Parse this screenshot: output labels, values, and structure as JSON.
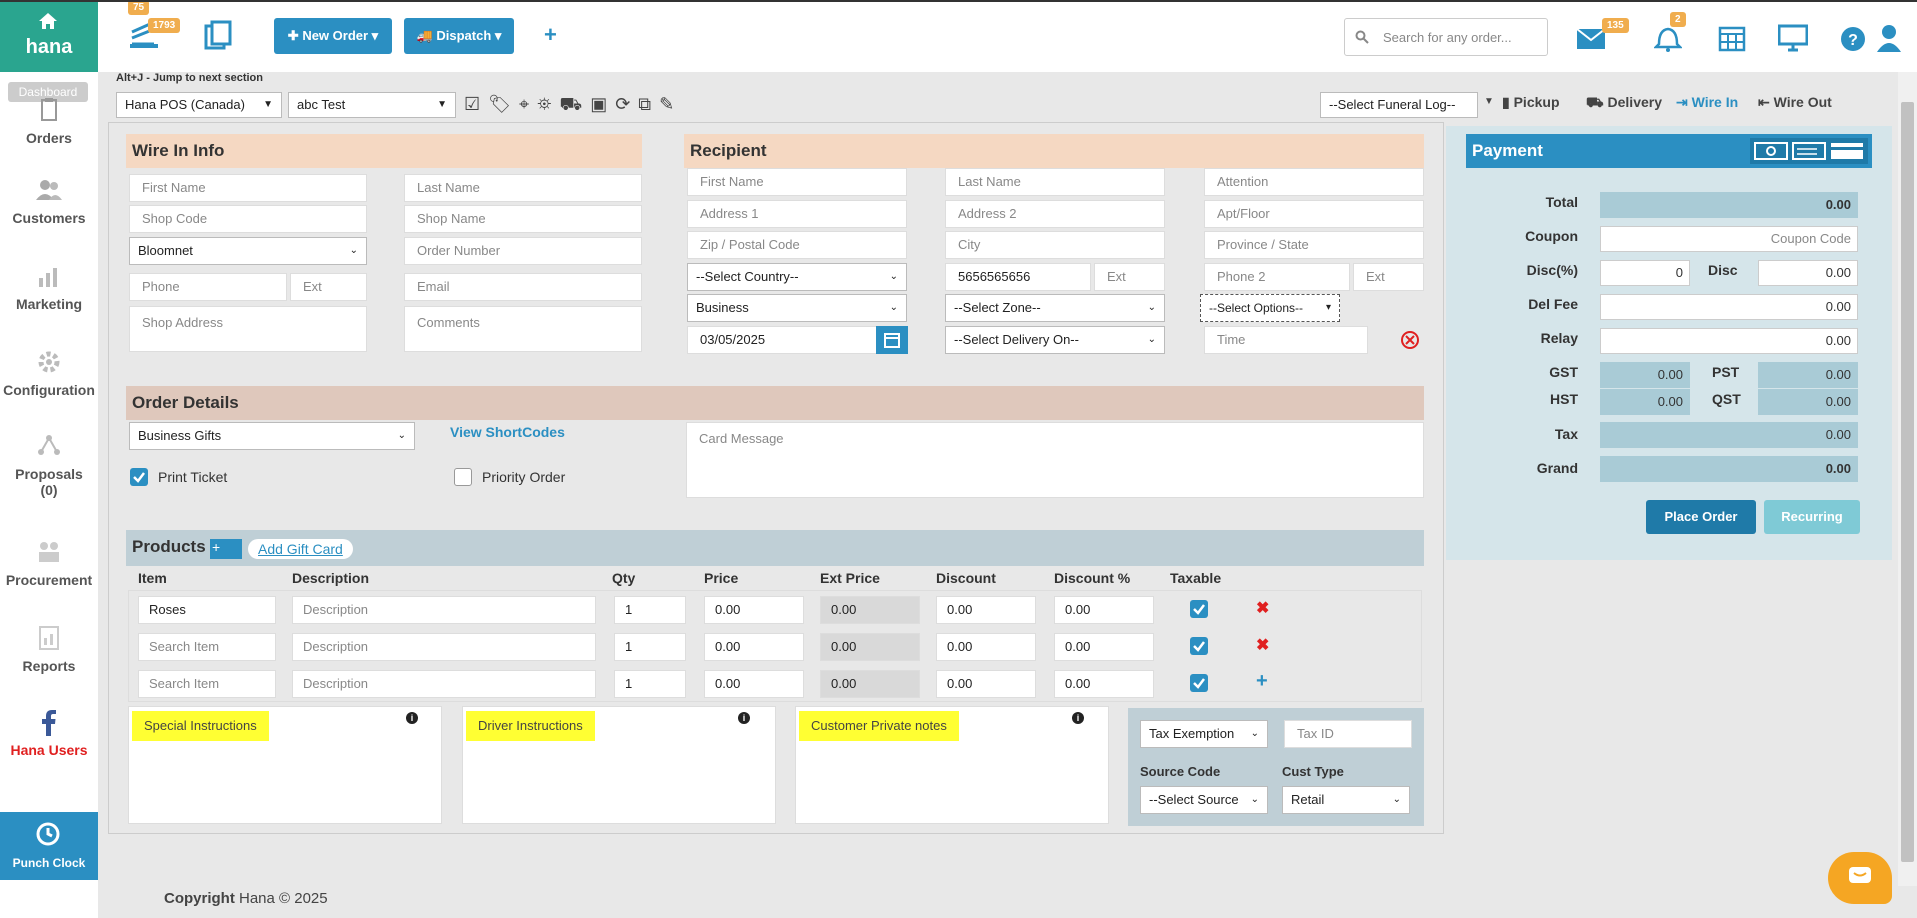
{
  "app": {
    "name": "hana",
    "dashboard_label": "Dashboard"
  },
  "sidebar": {
    "items": [
      {
        "label": "Orders",
        "icon": "clipboard-icon"
      },
      {
        "label": "Customers",
        "icon": "users-icon"
      },
      {
        "label": "Marketing",
        "icon": "bar-chart-icon"
      },
      {
        "label": "Configuration",
        "icon": "gear-icon"
      },
      {
        "label": "Proposals",
        "sublabel": "(0)",
        "icon": "network-icon"
      },
      {
        "label": "Procurement",
        "icon": "people-icon"
      },
      {
        "label": "Reports",
        "icon": "report-icon"
      },
      {
        "label": "Hana Users",
        "icon": "facebook-icon"
      }
    ],
    "punch_clock": "Punch Clock"
  },
  "topbar": {
    "badge_orders": "1793",
    "badge_tasks": "75",
    "new_order": "New Order",
    "dispatch": "Dispatch",
    "search_placeholder": "Search for any order...",
    "badge_mail": "135",
    "badge_bell": "2"
  },
  "toolbar": {
    "hint": "Alt+J - Jump to next section",
    "store_select": "Hana POS (Canada)",
    "user_select": "abc Test",
    "funeral_log": "--Select Funeral Log--",
    "pickup": "Pickup",
    "delivery": "Delivery",
    "wire_in": "Wire In",
    "wire_out": "Wire Out"
  },
  "wire_in": {
    "title": "Wire In Info",
    "first_name": "First Name",
    "last_name": "Last Name",
    "shop_code": "Shop Code",
    "shop_name": "Shop Name",
    "network": "Bloomnet",
    "order_number": "Order Number",
    "phone": "Phone",
    "ext": "Ext",
    "email": "Email",
    "shop_address": "Shop Address",
    "comments": "Comments"
  },
  "recipient": {
    "title": "Recipient",
    "first_name": "First Name",
    "last_name": "Last Name",
    "attention": "Attention",
    "address1": "Address 1",
    "address2": "Address 2",
    "apt": "Apt/Floor",
    "zip": "Zip / Postal Code",
    "city": "City",
    "province": "Province / State",
    "country": "--Select Country--",
    "phone": "5656565656",
    "ext": "Ext",
    "phone2": "Phone 2",
    "ext2": "Ext",
    "type": "Business",
    "zone": "--Select Zone--",
    "options": "--Select Options--",
    "date": "03/05/2025",
    "delivery_on": "--Select Delivery On--",
    "time": "Time"
  },
  "order_details": {
    "title": "Order Details",
    "occasion": "Business Gifts",
    "shortcodes": "View ShortCodes",
    "card_message": "Card Message",
    "print_ticket": "Print Ticket",
    "priority": "Priority Order"
  },
  "products": {
    "title": "Products",
    "add_gift_card": "Add Gift Card",
    "columns": [
      "Item",
      "Description",
      "Qty",
      "Price",
      "Ext Price",
      "Discount",
      "Discount %",
      "Taxable"
    ],
    "rows": [
      {
        "item": "Roses",
        "desc": "Description",
        "qty": "1",
        "price": "0.00",
        "ext": "0.00",
        "disc": "0.00",
        "discp": "0.00",
        "action": "remove"
      },
      {
        "item": "Search Item",
        "desc": "Description",
        "qty": "1",
        "price": "0.00",
        "ext": "0.00",
        "disc": "0.00",
        "discp": "0.00",
        "action": "remove"
      },
      {
        "item": "Search Item",
        "desc": "Description",
        "qty": "1",
        "price": "0.00",
        "ext": "0.00",
        "disc": "0.00",
        "discp": "0.00",
        "action": "add"
      }
    ]
  },
  "notes": {
    "special": "Special Instructions",
    "driver": "Driver Instructions",
    "private": "Customer Private notes"
  },
  "tax": {
    "exemption": "Tax Exemption",
    "tax_id": "Tax ID",
    "source_code_label": "Source Code",
    "source_select": "--Select Source",
    "cust_type_label": "Cust Type",
    "cust_type": "Retail"
  },
  "payment": {
    "title": "Payment",
    "total_label": "Total",
    "total": "0.00",
    "coupon_label": "Coupon",
    "coupon_ph": "Coupon Code",
    "discp_label": "Disc(%)",
    "discp": "0",
    "disc_label": "Disc",
    "disc": "0.00",
    "delfee_label": "Del Fee",
    "delfee": "0.00",
    "relay_label": "Relay",
    "relay": "0.00",
    "gst_label": "GST",
    "gst": "0.00",
    "pst_label": "PST",
    "pst": "0.00",
    "hst_label": "HST",
    "hst": "0.00",
    "qst_label": "QST",
    "qst": "0.00",
    "tax_label": "Tax",
    "tax": "0.00",
    "grand_label": "Grand",
    "grand": "0.00",
    "place_order": "Place Order",
    "recurring": "Recurring"
  },
  "footer": {
    "copyright_bold": "Copyright",
    "copyright_rest": " Hana © 2025"
  }
}
